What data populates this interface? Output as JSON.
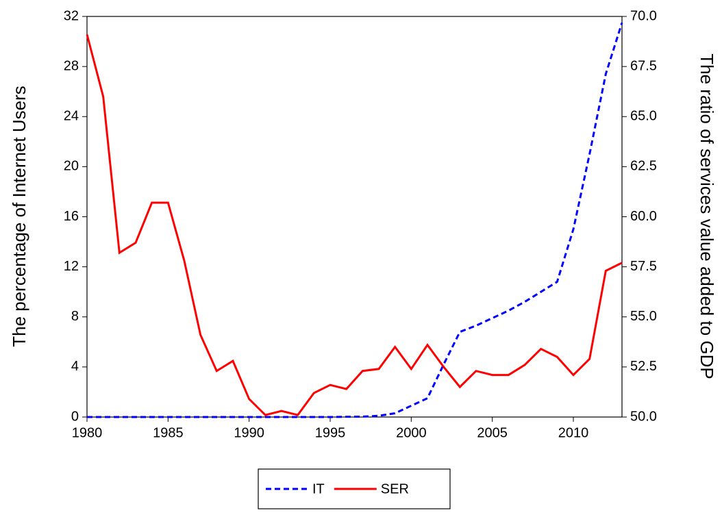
{
  "chart_data": {
    "type": "line",
    "x": [
      1980,
      1981,
      1982,
      1983,
      1984,
      1985,
      1986,
      1987,
      1988,
      1989,
      1990,
      1991,
      1992,
      1993,
      1994,
      1995,
      1996,
      1997,
      1998,
      1999,
      2000,
      2001,
      2002,
      2003,
      2004,
      2005,
      2006,
      2007,
      2008,
      2009,
      2010,
      2011,
      2012,
      2013
    ],
    "xlim": [
      1980,
      2013
    ],
    "xticks": [
      1980,
      1985,
      1990,
      1995,
      2000,
      2005,
      2010
    ],
    "y_label": "The percentage of Internet Users",
    "y2_label": "The ratio of services value added to GDP",
    "ylim": [
      0,
      32
    ],
    "yticks": [
      0,
      4,
      8,
      12,
      16,
      20,
      24,
      28,
      32
    ],
    "y2lim": [
      50,
      70
    ],
    "y2ticks": [
      {
        "value": 50,
        "label": "50.0"
      },
      {
        "value": 52.5,
        "label": "52.5"
      },
      {
        "value": 55,
        "label": "55.0"
      },
      {
        "value": 57.5,
        "label": "57.5"
      },
      {
        "value": 60,
        "label": "60.0"
      },
      {
        "value": 62.5,
        "label": "62.5"
      },
      {
        "value": 65,
        "label": "65.0"
      },
      {
        "value": 67.5,
        "label": "67.5"
      },
      {
        "value": 70,
        "label": "70.0"
      }
    ],
    "legend": "bottom",
    "series": [
      {
        "name": "IT",
        "color": "#0000ff",
        "dash": true,
        "values": [
          0,
          0,
          0,
          0,
          0,
          0,
          0,
          0,
          0,
          0,
          0,
          0,
          0,
          0,
          0,
          0,
          0.02,
          0.03,
          0.1,
          0.3,
          0.9,
          1.5,
          4.2,
          6.8,
          7.3,
          7.9,
          8.5,
          9.2,
          10.0,
          10.8,
          15.0,
          21.0,
          27.4,
          31.5
        ]
      },
      {
        "name": "SER",
        "color": "#ff0000",
        "axis": "y2",
        "values": [
          69.1,
          66.0,
          58.2,
          58.7,
          60.7,
          60.7,
          57.8,
          54.1,
          52.3,
          52.8,
          50.9,
          50.1,
          50.3,
          50.1,
          51.2,
          51.6,
          51.4,
          52.3,
          52.4,
          53.5,
          52.4,
          53.6,
          52.5,
          51.5,
          52.3,
          52.1,
          52.1,
          52.6,
          53.4,
          53.0,
          52.1,
          52.9,
          57.3,
          57.7
        ]
      }
    ]
  }
}
